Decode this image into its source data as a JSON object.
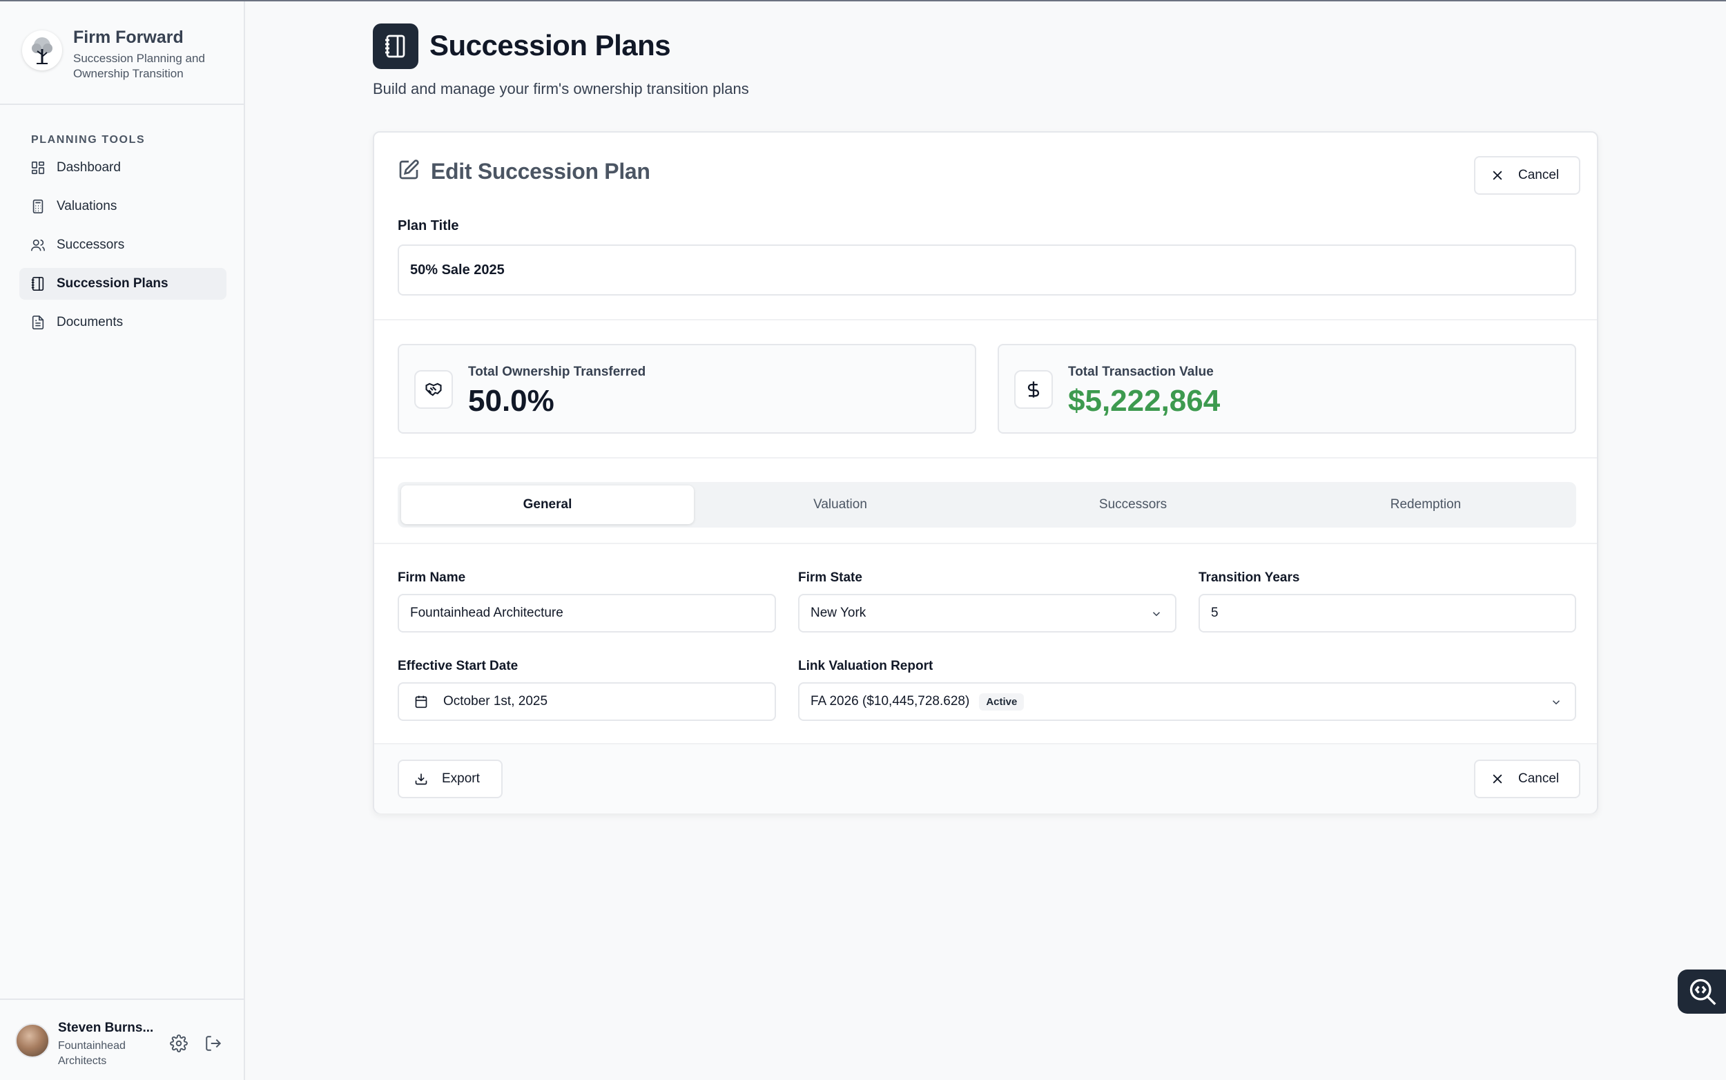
{
  "app": {
    "name": "Firm Forward",
    "tagline": "Succession Planning and Ownership Transition"
  },
  "sidebar": {
    "heading": "PLANNING TOOLS",
    "items": [
      {
        "label": "Dashboard",
        "icon": "dashboard-icon",
        "active": false
      },
      {
        "label": "Valuations",
        "icon": "calculator-icon",
        "active": false
      },
      {
        "label": "Successors",
        "icon": "users-icon",
        "active": false
      },
      {
        "label": "Succession Plans",
        "icon": "notebook-icon",
        "active": true
      },
      {
        "label": "Documents",
        "icon": "document-icon",
        "active": false
      }
    ]
  },
  "user": {
    "name": "Steven Burns...",
    "firm": "Fountainhead Architects"
  },
  "page": {
    "title": "Succession Plans",
    "subtitle": "Build and manage your firm's ownership transition plans"
  },
  "editor": {
    "title": "Edit Succession Plan",
    "cancel_label": "Cancel",
    "plan_title_label": "Plan Title",
    "plan_title_value": "50% Sale 2025"
  },
  "stats": {
    "ownership_label": "Total Ownership Transferred",
    "ownership_value": "50.0%",
    "transaction_label": "Total Transaction Value",
    "transaction_value": "$5,222,864",
    "transaction_color": "#3d9a4f"
  },
  "tabs": [
    "General",
    "Valuation",
    "Successors",
    "Redemption"
  ],
  "active_tab": "General",
  "form": {
    "firm_name_label": "Firm Name",
    "firm_name_value": "Fountainhead Architecture",
    "firm_state_label": "Firm State",
    "firm_state_value": "New York",
    "transition_years_label": "Transition Years",
    "transition_years_value": "5",
    "start_date_label": "Effective Start Date",
    "start_date_value": "October 1st, 2025",
    "valuation_label": "Link Valuation Report",
    "valuation_value": "FA 2026 ($10,445,728.628)",
    "valuation_badge": "Active"
  },
  "footer": {
    "export_label": "Export",
    "cancel_label": "Cancel"
  }
}
